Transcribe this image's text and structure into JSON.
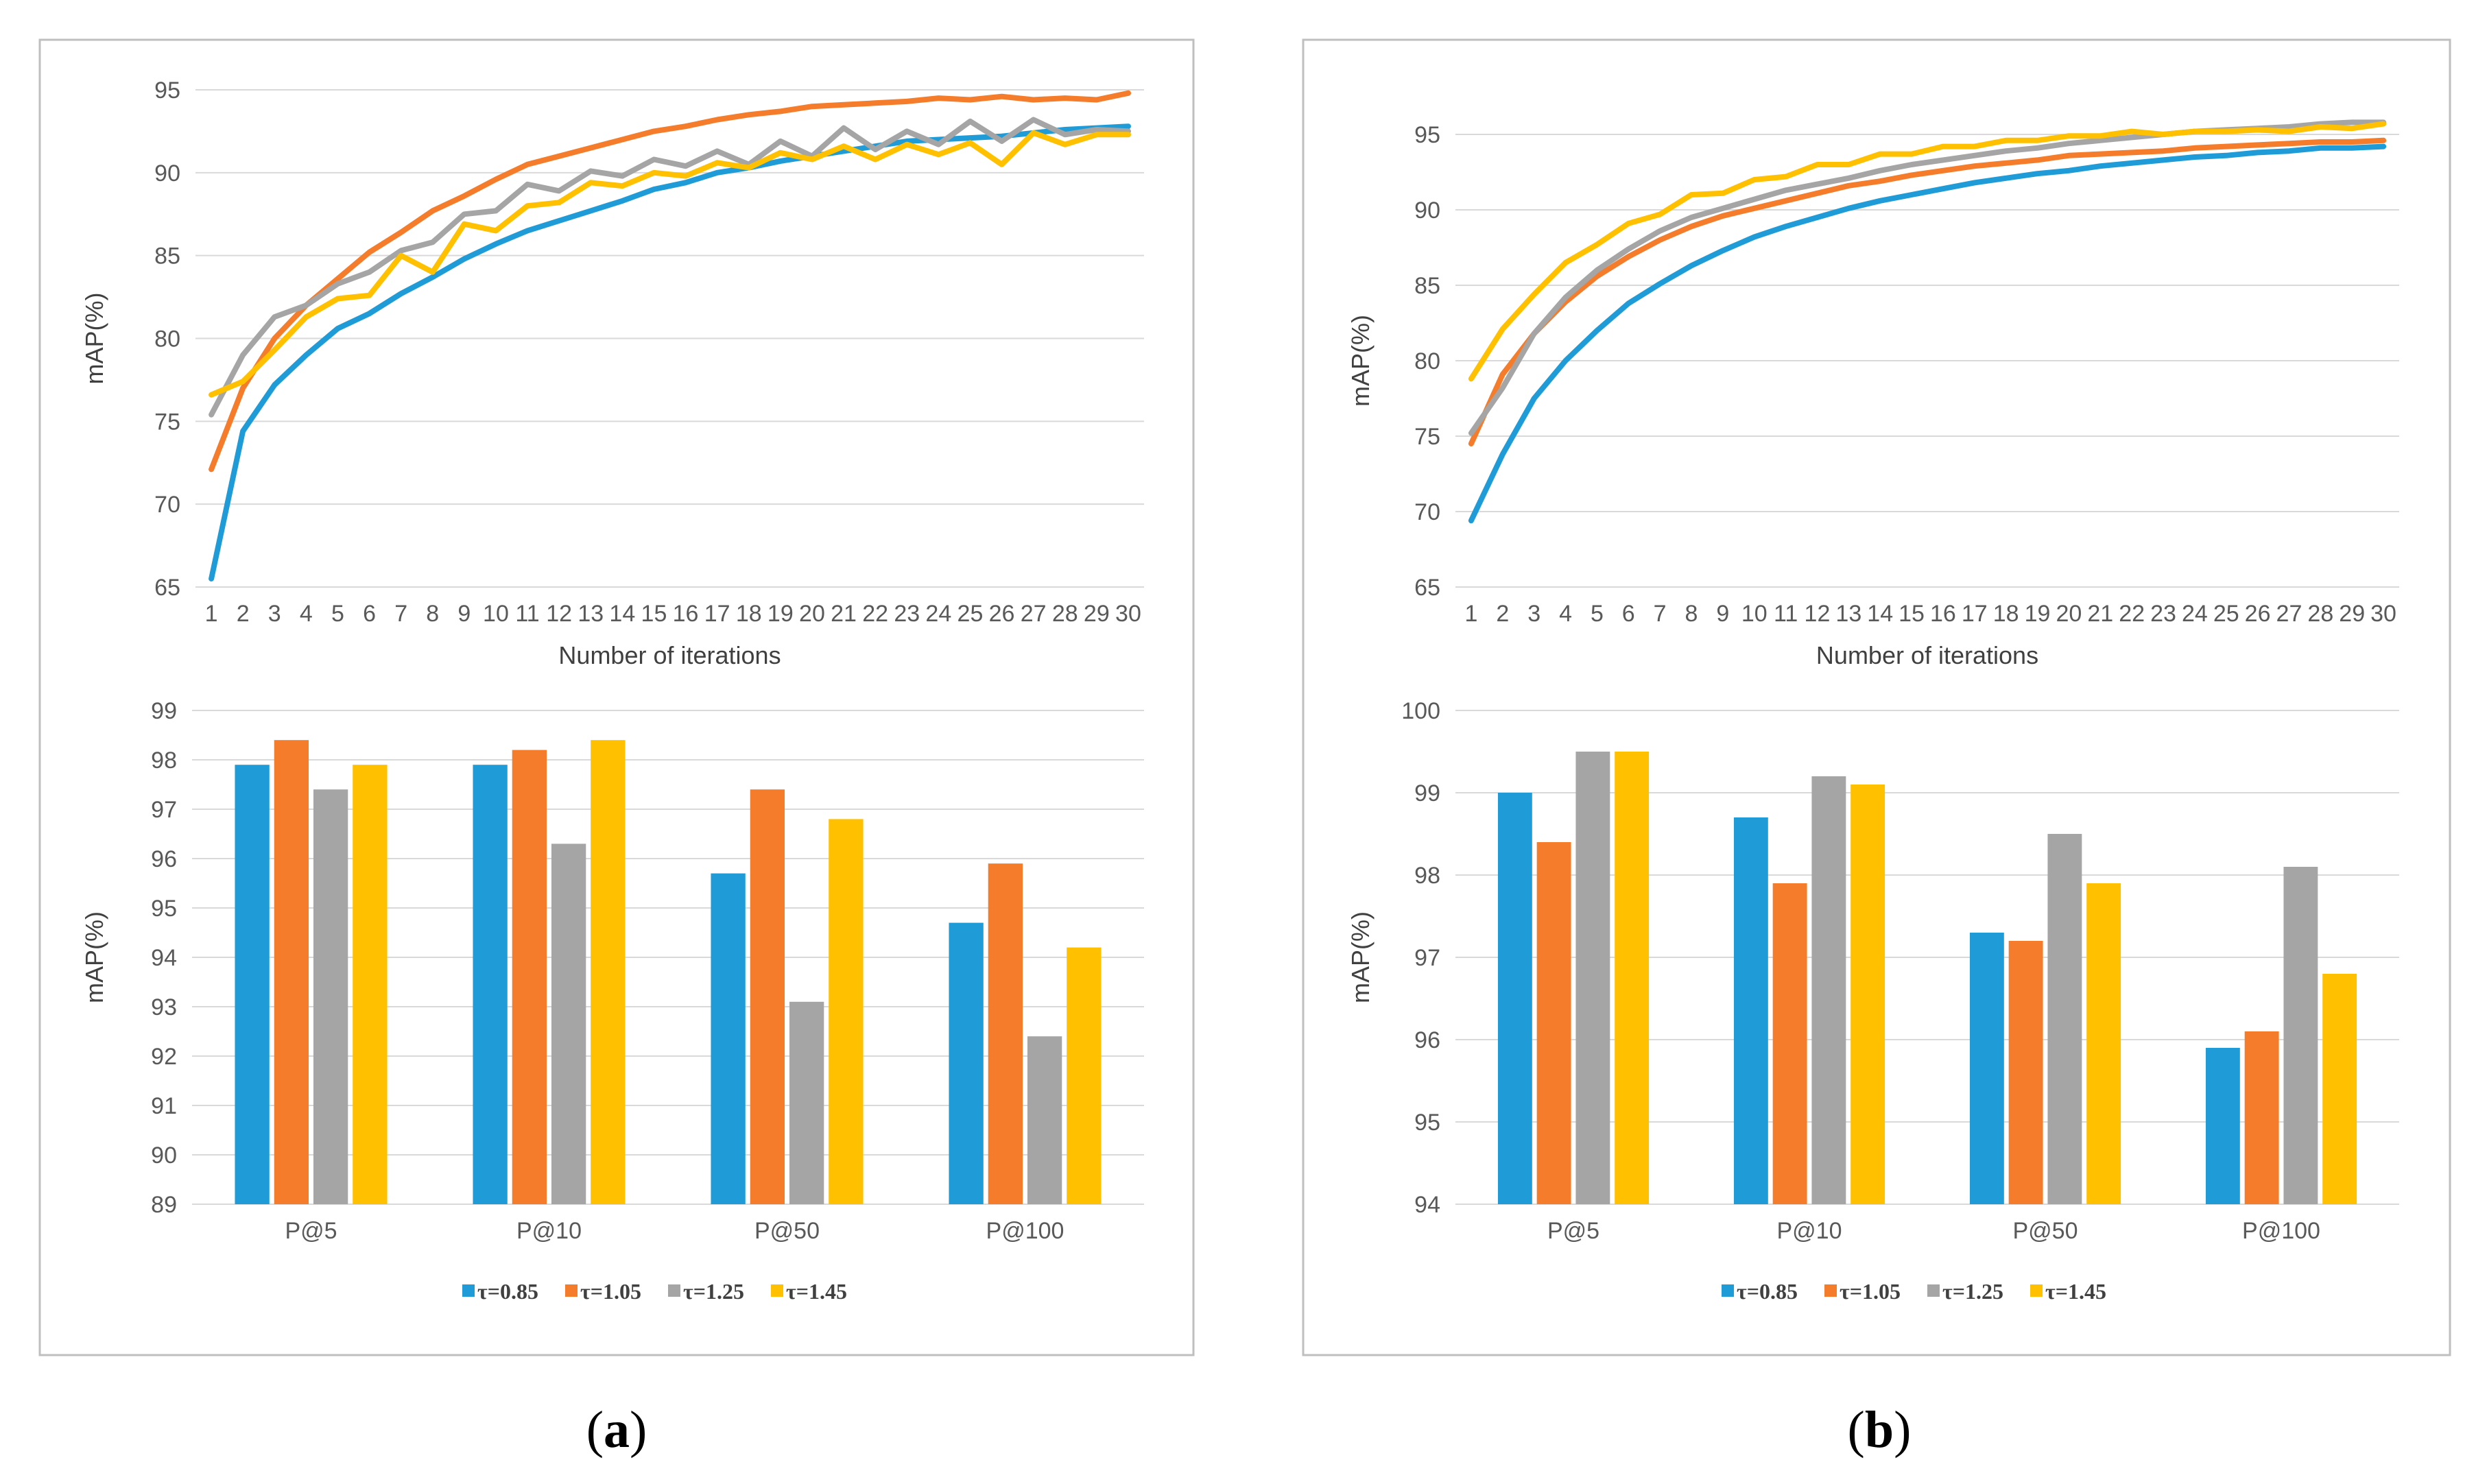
{
  "colors": {
    "tau_085": "#1f9cd8",
    "tau_105": "#f47c2a",
    "tau_125": "#a5a5a5",
    "tau_145": "#ffc000",
    "grid": "#d9d9d9",
    "frame": "#bfbfbf"
  },
  "panels": [
    {
      "letter": "a",
      "paren_open": "(",
      "paren_close": ")"
    },
    {
      "letter": "b",
      "paren_open": "(",
      "paren_close": ")"
    }
  ],
  "chart_data": [
    {
      "id": "a-line",
      "type": "line",
      "panel": "a",
      "xlabel": "Number of iterations",
      "ylabel": "mAP(%)",
      "ylim": [
        65,
        95
      ],
      "yticks": [
        65,
        70,
        75,
        80,
        85,
        90,
        95
      ],
      "grid": true,
      "x": [
        1,
        2,
        3,
        4,
        5,
        6,
        7,
        8,
        9,
        10,
        11,
        12,
        13,
        14,
        15,
        16,
        17,
        18,
        19,
        20,
        21,
        22,
        23,
        24,
        25,
        26,
        27,
        28,
        29,
        30
      ],
      "series": [
        {
          "name": "τ=0.85",
          "color": "#1f9cd8",
          "values": [
            65.5,
            74.4,
            77.2,
            79.0,
            80.6,
            81.5,
            82.7,
            83.7,
            84.8,
            85.7,
            86.5,
            87.1,
            87.7,
            88.3,
            89.0,
            89.4,
            90.0,
            90.3,
            90.7,
            91.0,
            91.3,
            91.6,
            91.9,
            92.0,
            92.1,
            92.2,
            92.4,
            92.6,
            92.7,
            92.8
          ]
        },
        {
          "name": "τ=1.05",
          "color": "#f47c2a",
          "values": [
            72.1,
            77.0,
            80.0,
            82.0,
            83.6,
            85.2,
            86.4,
            87.7,
            88.6,
            89.6,
            90.5,
            91.0,
            91.5,
            92.0,
            92.5,
            92.8,
            93.2,
            93.5,
            93.7,
            94.0,
            94.1,
            94.2,
            94.3,
            94.5,
            94.4,
            94.6,
            94.4,
            94.5,
            94.4,
            94.8
          ]
        },
        {
          "name": "τ=1.25",
          "color": "#a5a5a5",
          "values": [
            75.4,
            79.0,
            81.3,
            82.0,
            83.3,
            84.0,
            85.3,
            85.8,
            87.5,
            87.7,
            89.3,
            88.9,
            90.1,
            89.8,
            90.8,
            90.4,
            91.3,
            90.5,
            91.9,
            91.0,
            92.7,
            91.4,
            92.5,
            91.7,
            93.1,
            91.9,
            93.2,
            92.3,
            92.6,
            92.5
          ]
        },
        {
          "name": "τ=1.45",
          "color": "#ffc000",
          "values": [
            76.6,
            77.4,
            79.3,
            81.3,
            82.4,
            82.6,
            85.0,
            84.0,
            86.9,
            86.5,
            88.0,
            88.2,
            89.4,
            89.2,
            90.0,
            89.8,
            90.6,
            90.3,
            91.2,
            90.8,
            91.6,
            90.8,
            91.7,
            91.1,
            91.8,
            90.5,
            92.4,
            91.7,
            92.3,
            92.3
          ]
        }
      ]
    },
    {
      "id": "a-bar",
      "type": "bar",
      "panel": "a",
      "ylabel": "mAP(%)",
      "ylim": [
        89,
        99
      ],
      "yticks": [
        89,
        90,
        91,
        92,
        93,
        94,
        95,
        96,
        97,
        98,
        99
      ],
      "grid": true,
      "categories": [
        "P@5",
        "P@10",
        "P@50",
        "P@100"
      ],
      "legend_position": "bottom",
      "series": [
        {
          "name": "τ=0.85",
          "color": "#1f9cd8",
          "values": [
            97.9,
            97.9,
            95.7,
            94.7
          ]
        },
        {
          "name": "τ=1.05",
          "color": "#f47c2a",
          "values": [
            98.4,
            98.2,
            97.4,
            95.9
          ]
        },
        {
          "name": "τ=1.25",
          "color": "#a5a5a5",
          "values": [
            97.4,
            96.3,
            93.1,
            92.4
          ]
        },
        {
          "name": "τ=1.45",
          "color": "#ffc000",
          "values": [
            97.9,
            98.4,
            96.8,
            94.2
          ]
        }
      ]
    },
    {
      "id": "b-line",
      "type": "line",
      "panel": "b",
      "xlabel": "Number of iterations",
      "ylabel": "mAP(%)",
      "ylim": [
        65,
        95
      ],
      "yticks": [
        65,
        70,
        75,
        80,
        85,
        90,
        95
      ],
      "grid": true,
      "x": [
        1,
        2,
        3,
        4,
        5,
        6,
        7,
        8,
        9,
        10,
        11,
        12,
        13,
        14,
        15,
        16,
        17,
        18,
        19,
        20,
        21,
        22,
        23,
        24,
        25,
        26,
        27,
        28,
        29,
        30
      ],
      "series": [
        {
          "name": "τ=0.85",
          "color": "#1f9cd8",
          "values": [
            69.4,
            73.8,
            77.5,
            80.0,
            82.0,
            83.8,
            85.1,
            86.3,
            87.3,
            88.2,
            88.9,
            89.5,
            90.1,
            90.6,
            91.0,
            91.4,
            91.8,
            92.1,
            92.4,
            92.6,
            92.9,
            93.1,
            93.3,
            93.5,
            93.6,
            93.8,
            93.9,
            94.1,
            94.1,
            94.2
          ]
        },
        {
          "name": "τ=1.05",
          "color": "#f47c2a",
          "values": [
            74.5,
            79.1,
            81.8,
            83.9,
            85.6,
            86.9,
            88.0,
            88.9,
            89.6,
            90.1,
            90.6,
            91.1,
            91.6,
            91.9,
            92.3,
            92.6,
            92.9,
            93.1,
            93.3,
            93.6,
            93.7,
            93.8,
            93.9,
            94.1,
            94.2,
            94.3,
            94.4,
            94.5,
            94.5,
            94.6
          ]
        },
        {
          "name": "τ=1.25",
          "color": "#a5a5a5",
          "values": [
            75.2,
            78.2,
            81.8,
            84.2,
            86.0,
            87.4,
            88.6,
            89.5,
            90.1,
            90.7,
            91.3,
            91.7,
            92.1,
            92.6,
            93.0,
            93.3,
            93.6,
            93.9,
            94.1,
            94.4,
            94.6,
            94.8,
            95.0,
            95.2,
            95.3,
            95.4,
            95.5,
            95.7,
            95.8,
            95.8
          ]
        },
        {
          "name": "τ=1.45",
          "color": "#ffc000",
          "values": [
            78.8,
            82.1,
            84.4,
            86.5,
            87.7,
            89.1,
            89.7,
            91.0,
            91.1,
            92.0,
            92.2,
            93.0,
            93.0,
            93.7,
            93.7,
            94.2,
            94.2,
            94.6,
            94.6,
            94.9,
            94.9,
            95.2,
            95.0,
            95.2,
            95.2,
            95.3,
            95.2,
            95.5,
            95.4,
            95.7
          ]
        }
      ]
    },
    {
      "id": "b-bar",
      "type": "bar",
      "panel": "b",
      "ylabel": "mAP(%)",
      "ylim": [
        94,
        100
      ],
      "yticks": [
        94,
        95,
        96,
        97,
        98,
        99,
        100
      ],
      "grid": true,
      "categories": [
        "P@5",
        "P@10",
        "P@50",
        "P@100"
      ],
      "legend_position": "bottom",
      "series": [
        {
          "name": "τ=0.85",
          "color": "#1f9cd8",
          "values": [
            99.0,
            98.7,
            97.3,
            95.9
          ]
        },
        {
          "name": "τ=1.05",
          "color": "#f47c2a",
          "values": [
            98.4,
            97.9,
            97.2,
            96.1
          ]
        },
        {
          "name": "τ=1.25",
          "color": "#a5a5a5",
          "values": [
            99.5,
            99.2,
            98.5,
            98.1
          ]
        },
        {
          "name": "τ=1.45",
          "color": "#ffc000",
          "values": [
            99.5,
            99.1,
            97.9,
            96.8
          ]
        }
      ]
    }
  ]
}
